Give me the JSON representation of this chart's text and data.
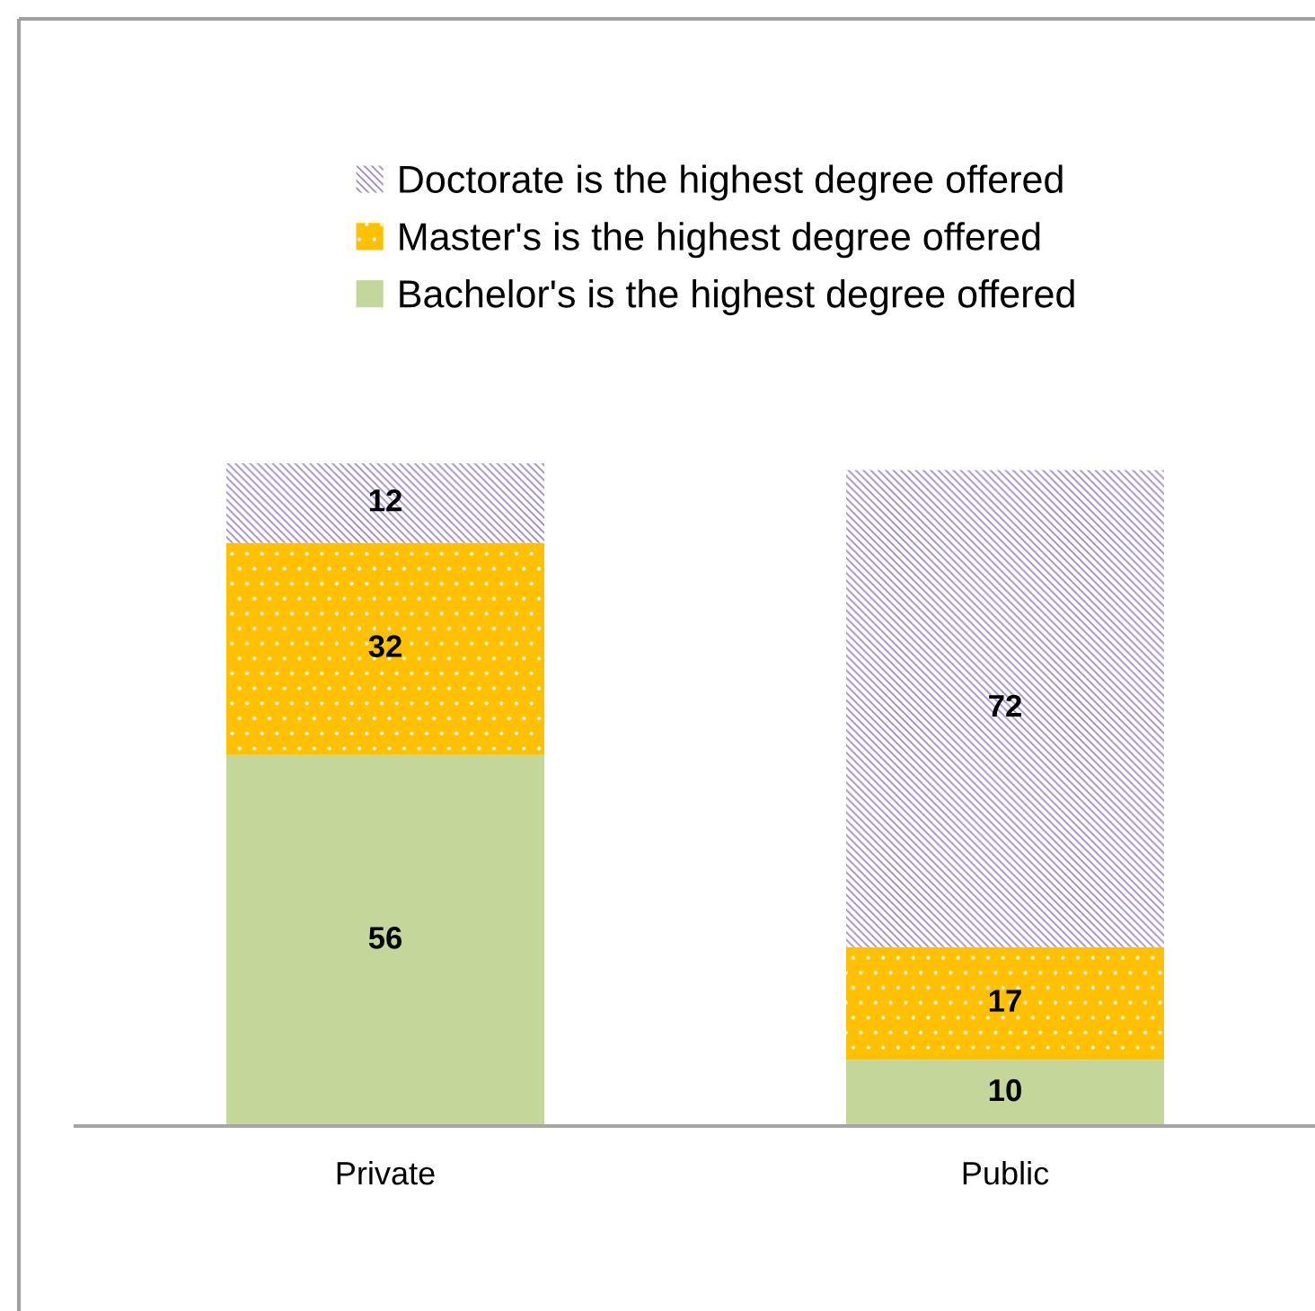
{
  "chart_data": {
    "type": "bar",
    "stacked": true,
    "categories": [
      "Private",
      "Public"
    ],
    "series": [
      {
        "name": "Bachelor's is the highest degree offered",
        "color": "#c4d79b",
        "values": [
          56,
          10
        ]
      },
      {
        "name": "Master's is the highest degree offered",
        "color": "#ffc000",
        "values": [
          32,
          17
        ]
      },
      {
        "name": "Doctorate is the highest degree offered",
        "color": "#9d88c6",
        "values": [
          12,
          72
        ]
      }
    ],
    "ylim": [
      0,
      100
    ],
    "data_labels": true,
    "legend": "top",
    "tick_labels": "x",
    "grid": false
  }
}
